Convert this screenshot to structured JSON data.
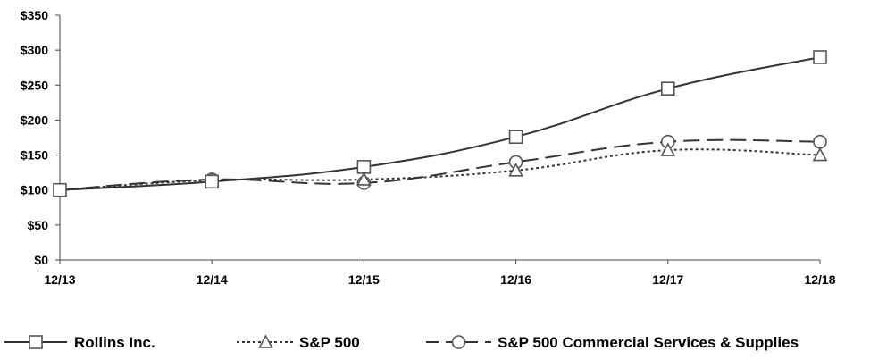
{
  "chart_data": {
    "type": "line",
    "title": "",
    "xlabel": "",
    "ylabel": "",
    "categories": [
      "12/13",
      "12/14",
      "12/15",
      "12/16",
      "12/17",
      "12/18"
    ],
    "ylim": [
      0,
      350
    ],
    "yticks": [
      0,
      50,
      100,
      150,
      200,
      250,
      300,
      350
    ],
    "ytick_labels": [
      "$0",
      "$50",
      "$100",
      "$150",
      "$200",
      "$250",
      "$300",
      "$350"
    ],
    "grid": false,
    "legend_position": "bottom",
    "series": [
      {
        "name": "Rollins Inc.",
        "values": [
          100,
          112,
          133,
          176,
          245,
          290
        ],
        "marker": "square",
        "dash": "solid",
        "color": "#000000"
      },
      {
        "name": "S&P 500",
        "values": [
          100,
          114,
          115,
          128,
          157,
          150
        ],
        "marker": "triangle",
        "dash": "dotted",
        "color": "#000000"
      },
      {
        "name": "S&P 500 Commercial Services & Supplies",
        "values": [
          100,
          115,
          110,
          140,
          169,
          169
        ],
        "marker": "circle",
        "dash": "longdash",
        "color": "#000000"
      }
    ]
  }
}
